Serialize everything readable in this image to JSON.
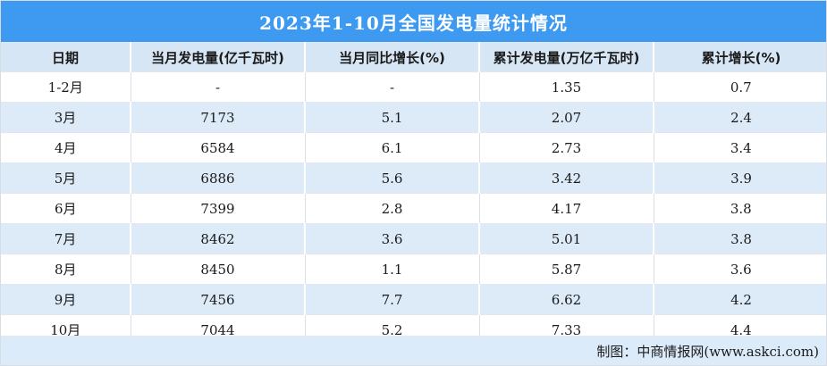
{
  "title": "2023年1-10月全国发电量统计情况",
  "colors": {
    "title_bg": "#3d9af0",
    "title_text": "#ffffff",
    "header_bg": "#d7e6f5",
    "row_alt_bg": "#ddebf9",
    "footer_bg": "#dcebf9",
    "divider_on_colored": "#ffffff",
    "divider_on_white": "#dbe0e8",
    "body_text": "#1a1a1a"
  },
  "table": {
    "headers": [
      "日期",
      "当月发电量(亿千瓦时)",
      "当月同比增长(%)",
      "累计发电量(万亿千瓦时)",
      "累计增长(%)"
    ],
    "display_rows": [
      [
        "1-2月",
        "-",
        "-",
        "1.35",
        "0.7"
      ],
      [
        "3月",
        "7173",
        "5.1",
        "2.07",
        "2.4"
      ],
      [
        "4月",
        "6584",
        "6.1",
        "2.73",
        "3.4"
      ],
      [
        "5月",
        "6886",
        "5.6",
        "3.42",
        "3.9"
      ],
      [
        "6月",
        "7399",
        "2.8",
        "4.17",
        "3.8"
      ],
      [
        "7月",
        "8462",
        "3.6",
        "5.01",
        "3.8"
      ],
      [
        "8月",
        "8450",
        "1.1",
        "5.87",
        "3.6"
      ],
      [
        "9月",
        "7456",
        "7.7",
        "6.62",
        "4.2"
      ],
      [
        "10月",
        "7044",
        "5.2",
        "7.33",
        "4.4"
      ]
    ]
  },
  "footer": {
    "credit": "制图：中商情报网(www.askci.com)"
  },
  "chart_data": {
    "type": "table",
    "title": "2023年1-10月全国发电量统计情况",
    "columns": [
      "日期",
      "当月发电量(亿千瓦时)",
      "当月同比增长(%)",
      "累计发电量(万亿千瓦时)",
      "累计增长(%)"
    ],
    "rows": [
      {
        "date": "1-2月",
        "monthly_generation": null,
        "monthly_yoy_growth_pct": null,
        "cumulative_generation": 1.35,
        "cumulative_growth_pct": 0.7
      },
      {
        "date": "3月",
        "monthly_generation": 7173,
        "monthly_yoy_growth_pct": 5.1,
        "cumulative_generation": 2.07,
        "cumulative_growth_pct": 2.4
      },
      {
        "date": "4月",
        "monthly_generation": 6584,
        "monthly_yoy_growth_pct": 6.1,
        "cumulative_generation": 2.73,
        "cumulative_growth_pct": 3.4
      },
      {
        "date": "5月",
        "monthly_generation": 6886,
        "monthly_yoy_growth_pct": 5.6,
        "cumulative_generation": 3.42,
        "cumulative_growth_pct": 3.9
      },
      {
        "date": "6月",
        "monthly_generation": 7399,
        "monthly_yoy_growth_pct": 2.8,
        "cumulative_generation": 4.17,
        "cumulative_growth_pct": 3.8
      },
      {
        "date": "7月",
        "monthly_generation": 8462,
        "monthly_yoy_growth_pct": 3.6,
        "cumulative_generation": 5.01,
        "cumulative_growth_pct": 3.8
      },
      {
        "date": "8月",
        "monthly_generation": 8450,
        "monthly_yoy_growth_pct": 1.1,
        "cumulative_generation": 5.87,
        "cumulative_growth_pct": 3.6
      },
      {
        "date": "9月",
        "monthly_generation": 7456,
        "monthly_yoy_growth_pct": 7.7,
        "cumulative_generation": 6.62,
        "cumulative_growth_pct": 4.2
      },
      {
        "date": "10月",
        "monthly_generation": 7044,
        "monthly_yoy_growth_pct": 5.2,
        "cumulative_generation": 7.33,
        "cumulative_growth_pct": 4.4
      }
    ],
    "source_note": "制图：中商情报网(www.askci.com)"
  }
}
